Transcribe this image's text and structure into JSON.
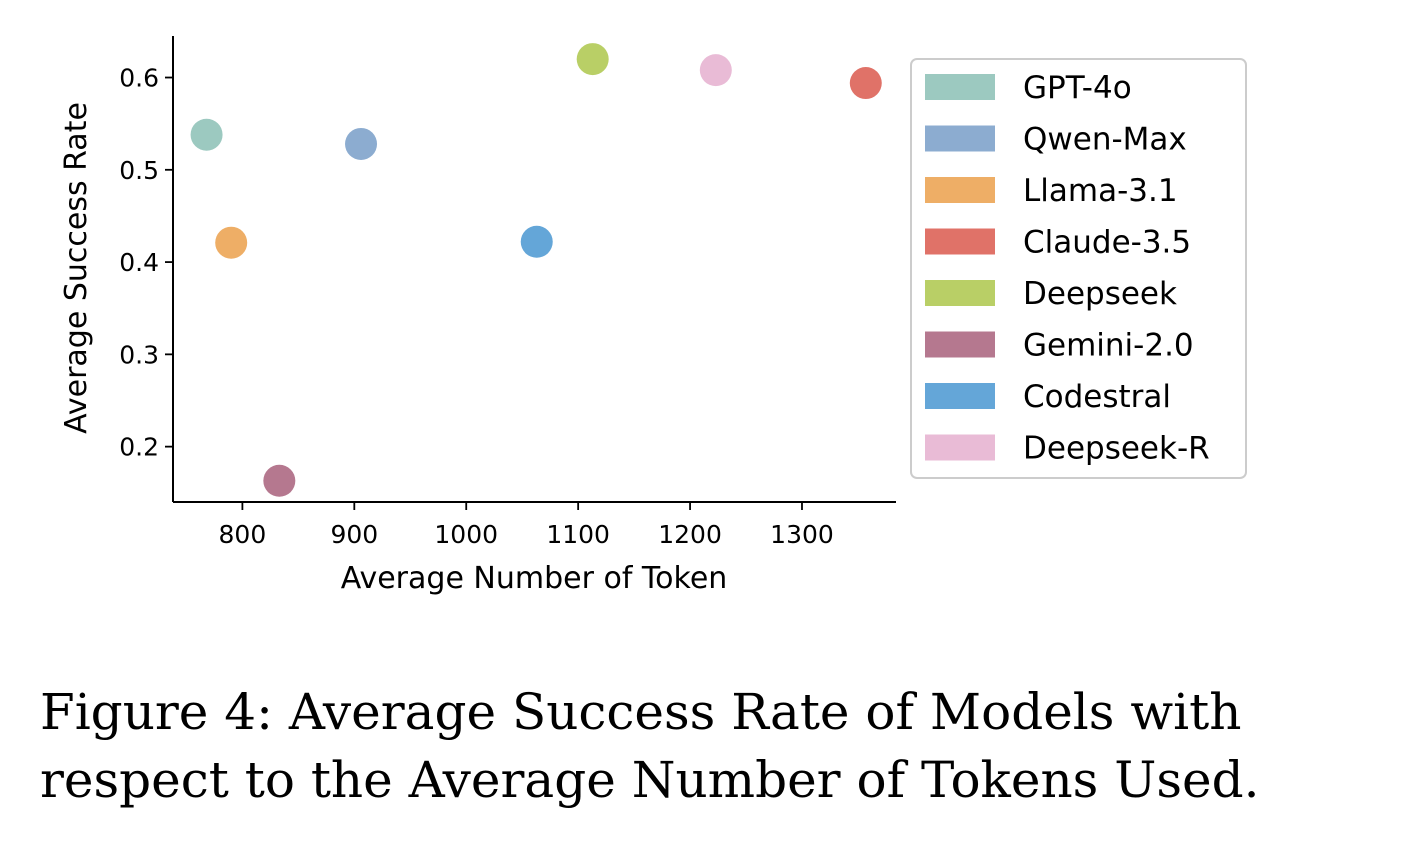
{
  "chart_data": {
    "type": "scatter",
    "xlabel": "Average Number of Token",
    "ylabel": "Average Success Rate",
    "xlim": [
      738,
      1384
    ],
    "ylim": [
      0.14,
      0.645
    ],
    "xticks": [
      800,
      900,
      1000,
      1100,
      1200,
      1300
    ],
    "yticks": [
      0.2,
      0.3,
      0.4,
      0.5,
      0.6
    ],
    "grid": false,
    "legend_position": "right",
    "series": [
      {
        "name": "GPT-4o",
        "color": "#9cc9c0",
        "x": [
          768
        ],
        "y": [
          0.538
        ]
      },
      {
        "name": "Qwen-Max",
        "color": "#8cacd0",
        "x": [
          906
        ],
        "y": [
          0.528
        ]
      },
      {
        "name": "Llama-3.1",
        "color": "#eeae66",
        "x": [
          790
        ],
        "y": [
          0.421
        ]
      },
      {
        "name": "Claude-3.5",
        "color": "#e07268",
        "x": [
          1357
        ],
        "y": [
          0.594
        ]
      },
      {
        "name": "Deepseek",
        "color": "#b9cf66",
        "x": [
          1113
        ],
        "y": [
          0.62
        ]
      },
      {
        "name": "Gemini-2.0",
        "color": "#b5788f",
        "x": [
          833
        ],
        "y": [
          0.163
        ]
      },
      {
        "name": "Codestral",
        "color": "#64a6d8",
        "x": [
          1063
        ],
        "y": [
          0.422
        ]
      },
      {
        "name": "Deepseek-R",
        "color": "#e9bbd6",
        "x": [
          1223
        ],
        "y": [
          0.608
        ]
      }
    ]
  },
  "caption": {
    "text": "Figure 4:  Average Success Rate of Models with respect to the Average Number of Tokens Used."
  }
}
